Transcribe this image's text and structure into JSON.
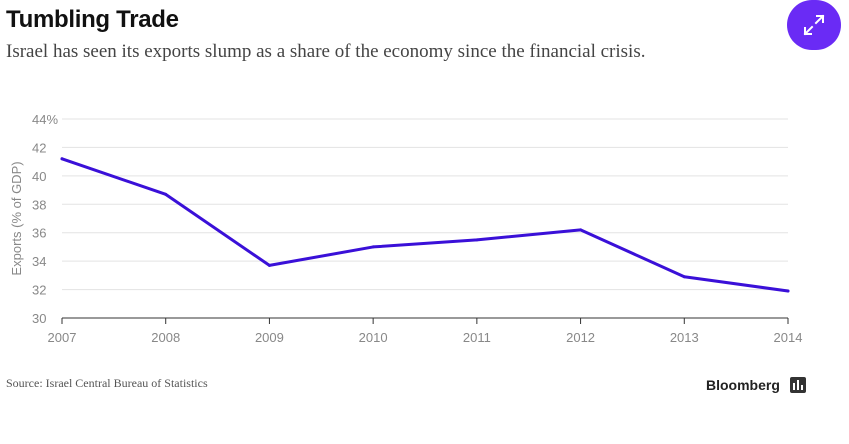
{
  "header": {
    "title": "Tumbling Trade",
    "subtitle": "Israel has seen its exports slump as a share of the economy since the financial crisis."
  },
  "actions": {
    "expand_icon": "expand-arrows-icon"
  },
  "chart_data": {
    "type": "line",
    "title": "Tumbling Trade",
    "subtitle": "Israel has seen its exports slump as a share of the economy since the financial crisis.",
    "ylabel": "Exports (% of GDP)",
    "xlabel": "",
    "x": [
      "2007",
      "2008",
      "2009",
      "2010",
      "2011",
      "2012",
      "2013",
      "2014"
    ],
    "series": [
      {
        "values": [
          41.2,
          38.7,
          33.7,
          35.0,
          35.5,
          36.2,
          32.9,
          31.9
        ],
        "color": "#3a10d8"
      }
    ],
    "ylim": [
      30,
      44
    ],
    "yticks": [
      30,
      32,
      34,
      36,
      38,
      40,
      42,
      44
    ],
    "ytick_labels": [
      "30",
      "32",
      "34",
      "36",
      "38",
      "40",
      "42",
      "44%"
    ],
    "grid": true
  },
  "footer": {
    "source": "Source: Israel Central Bureau of Statistics",
    "brand": "Bloomberg",
    "brand_icon": "bloomberg-bars-icon"
  }
}
